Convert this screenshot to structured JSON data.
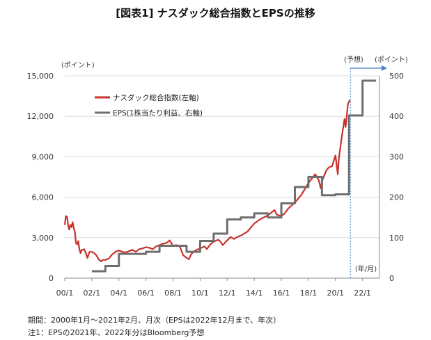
{
  "title": "[図表1] ナスダック総合指数とEPSの推移",
  "notes": {
    "period": "期間：2000年1月～2021年2月、月次（EPSは2022年12月まで、年次）",
    "note1": "注1：EPSの2021年、2022年分はBloomberg予想"
  },
  "colors": {
    "nasdaq": "#c8312b",
    "eps": "#6e6e6e",
    "forecast_line": "#4a80c8",
    "grid": "#dcdcdc"
  },
  "chart_data": {
    "type": "line",
    "x_unit_label": "(年/月)",
    "x_ticks": [
      "00/1",
      "02/1",
      "04/1",
      "06/1",
      "08/1",
      "10/1",
      "12/1",
      "14/1",
      "16/1",
      "18/1",
      "20/1",
      "22/1"
    ],
    "y_left": {
      "label": "(ポイント)",
      "ylim": [
        0,
        15000
      ],
      "ticks": [
        "0",
        "3,000",
        "6,000",
        "9,000",
        "12,000",
        "15,000"
      ]
    },
    "y_right": {
      "label": "(ポイント)",
      "ylim": [
        0,
        500
      ],
      "ticks": [
        "0",
        "100",
        "200",
        "300",
        "400",
        "500"
      ]
    },
    "forecast_label": "(予想)",
    "grid": true,
    "legend": {
      "position": "top-left"
    },
    "series": [
      {
        "name": "ナスダック総合指数(左軸)",
        "axis": "left",
        "style": "line",
        "points": [
          [
            2000.0,
            3950
          ],
          [
            2000.08,
            4600
          ],
          [
            2000.17,
            4550
          ],
          [
            2000.25,
            3900
          ],
          [
            2000.33,
            3600
          ],
          [
            2000.42,
            3950
          ],
          [
            2000.5,
            3780
          ],
          [
            2000.58,
            4150
          ],
          [
            2000.67,
            3700
          ],
          [
            2000.75,
            3400
          ],
          [
            2000.83,
            2600
          ],
          [
            2000.92,
            2500
          ],
          [
            2001.0,
            2750
          ],
          [
            2001.08,
            2150
          ],
          [
            2001.17,
            1850
          ],
          [
            2001.25,
            2100
          ],
          [
            2001.33,
            2100
          ],
          [
            2001.42,
            2150
          ],
          [
            2001.5,
            2000
          ],
          [
            2001.58,
            1800
          ],
          [
            2001.67,
            1500
          ],
          [
            2001.75,
            1700
          ],
          [
            2001.83,
            1950
          ],
          [
            2001.92,
            1950
          ],
          [
            2002.0,
            1950
          ],
          [
            2002.17,
            1850
          ],
          [
            2002.33,
            1700
          ],
          [
            2002.5,
            1400
          ],
          [
            2002.67,
            1250
          ],
          [
            2002.83,
            1350
          ],
          [
            2002.92,
            1350
          ],
          [
            2003.0,
            1350
          ],
          [
            2003.25,
            1450
          ],
          [
            2003.5,
            1750
          ],
          [
            2003.75,
            1950
          ],
          [
            2004.0,
            2050
          ],
          [
            2004.25,
            1950
          ],
          [
            2004.5,
            1900
          ],
          [
            2004.75,
            2000
          ],
          [
            2005.0,
            2100
          ],
          [
            2005.25,
            1950
          ],
          [
            2005.5,
            2150
          ],
          [
            2005.75,
            2200
          ],
          [
            2006.0,
            2300
          ],
          [
            2006.25,
            2250
          ],
          [
            2006.5,
            2150
          ],
          [
            2006.75,
            2350
          ],
          [
            2007.0,
            2450
          ],
          [
            2007.25,
            2550
          ],
          [
            2007.5,
            2600
          ],
          [
            2007.75,
            2800
          ],
          [
            2008.0,
            2400
          ],
          [
            2008.25,
            2450
          ],
          [
            2008.5,
            2350
          ],
          [
            2008.75,
            1700
          ],
          [
            2009.0,
            1500
          ],
          [
            2009.17,
            1400
          ],
          [
            2009.33,
            1750
          ],
          [
            2009.5,
            1950
          ],
          [
            2009.75,
            2100
          ],
          [
            2010.0,
            2200
          ],
          [
            2010.33,
            2350
          ],
          [
            2010.5,
            2150
          ],
          [
            2010.75,
            2500
          ],
          [
            2011.0,
            2700
          ],
          [
            2011.33,
            2850
          ],
          [
            2011.5,
            2700
          ],
          [
            2011.67,
            2450
          ],
          [
            2012.0,
            2800
          ],
          [
            2012.25,
            3050
          ],
          [
            2012.5,
            2900
          ],
          [
            2012.75,
            3050
          ],
          [
            2013.0,
            3150
          ],
          [
            2013.5,
            3450
          ],
          [
            2014.0,
            4050
          ],
          [
            2014.5,
            4400
          ],
          [
            2015.0,
            4650
          ],
          [
            2015.5,
            5050
          ],
          [
            2015.67,
            4700
          ],
          [
            2016.0,
            4600
          ],
          [
            2016.25,
            4800
          ],
          [
            2016.5,
            5150
          ],
          [
            2017.0,
            5600
          ],
          [
            2017.5,
            6200
          ],
          [
            2018.0,
            7050
          ],
          [
            2018.5,
            7700
          ],
          [
            2018.75,
            7300
          ],
          [
            2018.92,
            6650
          ],
          [
            2019.0,
            7200
          ],
          [
            2019.33,
            8000
          ],
          [
            2019.5,
            8200
          ],
          [
            2019.75,
            8300
          ],
          [
            2020.0,
            9100
          ],
          [
            2020.17,
            7700
          ],
          [
            2020.25,
            8900
          ],
          [
            2020.5,
            10700
          ],
          [
            2020.67,
            11800
          ],
          [
            2020.75,
            11200
          ],
          [
            2020.92,
            12900
          ],
          [
            2021.0,
            13100
          ],
          [
            2021.08,
            13200
          ]
        ]
      },
      {
        "name": "EPS(1株当たり利益、右軸)",
        "axis": "right",
        "style": "step",
        "points": [
          [
            2002.0,
            17
          ],
          [
            2003.0,
            30
          ],
          [
            2004.0,
            60
          ],
          [
            2005.0,
            60
          ],
          [
            2006.0,
            65
          ],
          [
            2007.0,
            80
          ],
          [
            2008.0,
            80
          ],
          [
            2009.0,
            65
          ],
          [
            2010.0,
            92
          ],
          [
            2011.0,
            110
          ],
          [
            2012.0,
            145
          ],
          [
            2013.0,
            150
          ],
          [
            2014.0,
            160
          ],
          [
            2015.0,
            150
          ],
          [
            2016.0,
            185
          ],
          [
            2017.0,
            225
          ],
          [
            2018.0,
            250
          ],
          [
            2019.0,
            205
          ],
          [
            2020.0,
            207
          ],
          [
            2021.0,
            402
          ],
          [
            2022.0,
            488
          ],
          [
            2023.0,
            488
          ]
        ]
      }
    ]
  }
}
